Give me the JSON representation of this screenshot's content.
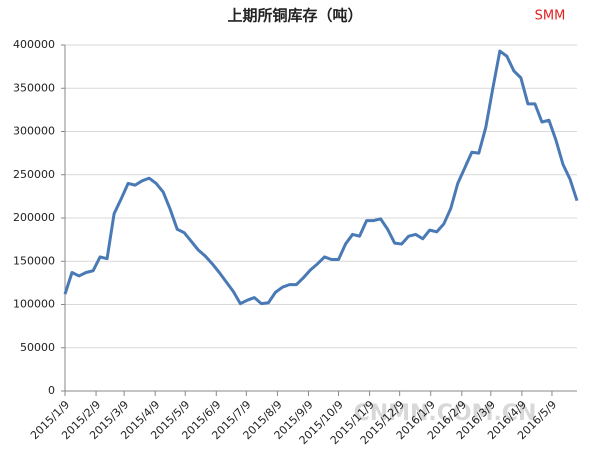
{
  "chart_data": {
    "type": "line",
    "title": "上期所铜库存（吨）",
    "brand": "SMM",
    "watermark": "CNMN.COM.CN",
    "x": [
      "2015/1/9",
      "2015/1/16",
      "2015/1/23",
      "2015/1/30",
      "2015/2/6",
      "2015/2/13",
      "2015/2/20",
      "2015/2/27",
      "2015/3/6",
      "2015/3/13",
      "2015/3/20",
      "2015/3/27",
      "2015/4/3",
      "2015/4/10",
      "2015/4/17",
      "2015/4/24",
      "2015/5/1",
      "2015/5/8",
      "2015/5/15",
      "2015/5/22",
      "2015/5/29",
      "2015/6/5",
      "2015/6/12",
      "2015/6/19",
      "2015/6/26",
      "2015/7/3",
      "2015/7/10",
      "2015/7/17",
      "2015/7/24",
      "2015/7/31",
      "2015/8/7",
      "2015/8/14",
      "2015/8/21",
      "2015/8/28",
      "2015/9/4",
      "2015/9/11",
      "2015/9/18",
      "2015/9/25",
      "2015/10/2",
      "2015/10/9",
      "2015/10/16",
      "2015/10/23",
      "2015/10/30",
      "2015/11/6",
      "2015/11/13",
      "2015/11/20",
      "2015/11/27",
      "2015/12/4",
      "2015/12/11",
      "2015/12/18",
      "2015/12/25",
      "2016/1/1",
      "2016/1/8",
      "2016/1/15",
      "2016/1/22",
      "2016/1/29",
      "2016/2/5",
      "2016/2/12",
      "2016/2/19",
      "2016/2/26",
      "2016/3/4",
      "2016/3/11",
      "2016/3/18",
      "2016/3/25",
      "2016/4/1",
      "2016/4/8",
      "2016/4/15",
      "2016/4/22",
      "2016/4/29",
      "2016/5/6",
      "2016/5/13",
      "2016/5/20",
      "2016/5/27",
      "2016/6/3"
    ],
    "series": [
      {
        "color": "#4a7ab5",
        "values": [
          112000,
          137000,
          133000,
          137000,
          139000,
          155000,
          153000,
          205000,
          222000,
          240000,
          238000,
          243000,
          246000,
          240000,
          230000,
          210000,
          187000,
          183000,
          173000,
          163000,
          156000,
          147000,
          137000,
          126000,
          115000,
          101000,
          105000,
          108000,
          101000,
          102000,
          114000,
          120000,
          123000,
          123000,
          131000,
          140000,
          147000,
          155000,
          152000,
          152000,
          170000,
          181000,
          179000,
          197000,
          197000,
          199000,
          187000,
          171000,
          170000,
          179000,
          181000,
          176000,
          186000,
          184000,
          193000,
          211000,
          240000,
          258000,
          276000,
          275000,
          305000,
          350000,
          393000,
          387000,
          370000,
          362000,
          332000,
          332000,
          311000,
          313000,
          290000,
          262000,
          245000,
          220000
        ]
      }
    ],
    "xlim": [
      "2015/1/9",
      "2016/6/3"
    ],
    "xticks": [
      "2015/1/9",
      "2015/2/9",
      "2015/3/9",
      "2015/4/9",
      "2015/5/9",
      "2015/6/9",
      "2015/7/9",
      "2015/8/9",
      "2015/9/9",
      "2015/10/9",
      "2015/11/9",
      "2015/12/9",
      "2016/1/9",
      "2016/2/9",
      "2016/3/9",
      "2016/4/9",
      "2016/5/9"
    ],
    "ylim": [
      0,
      400000
    ],
    "yticks": [
      0,
      50000,
      100000,
      150000,
      200000,
      250000,
      300000,
      350000,
      400000
    ],
    "grid": true
  }
}
